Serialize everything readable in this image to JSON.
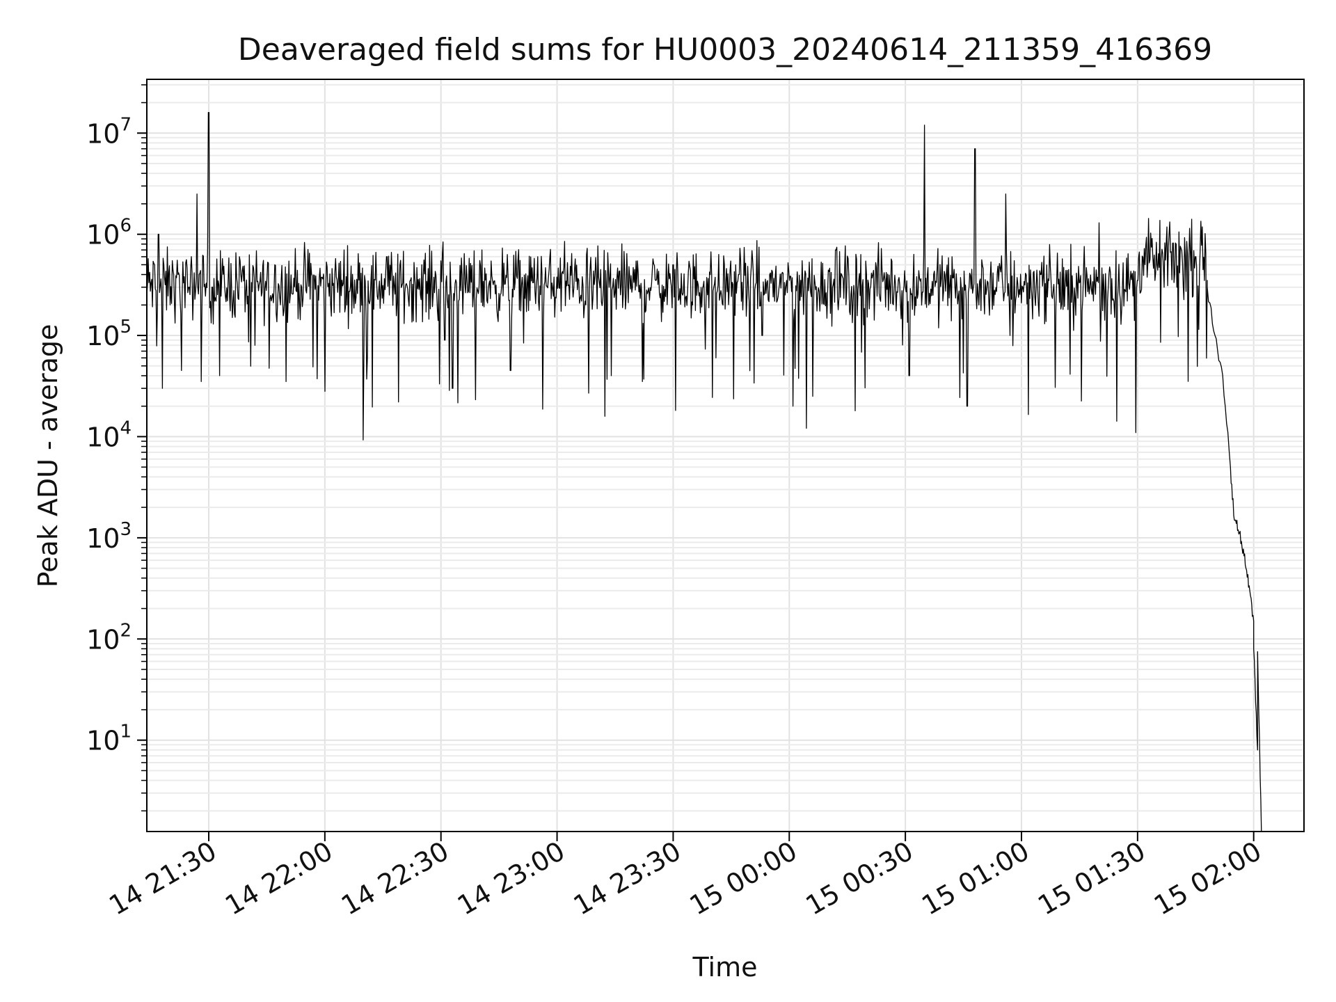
{
  "chart_data": {
    "type": "line",
    "title": "Deaveraged field sums for HU0003_20240614_211359_416369",
    "xlabel": "Time",
    "ylabel": "Peak ADU - average",
    "y_scale": "log",
    "grid": true,
    "x_ticks": [
      "14 21:30",
      "14 22:00",
      "14 22:30",
      "14 23:00",
      "14 23:30",
      "15 00:00",
      "15 00:30",
      "15 01:00",
      "15 01:30",
      "15 02:00"
    ],
    "y_ticks": [
      {
        "base": "10",
        "exp": "1"
      },
      {
        "base": "10",
        "exp": "2"
      },
      {
        "base": "10",
        "exp": "3"
      },
      {
        "base": "10",
        "exp": "4"
      },
      {
        "base": "10",
        "exp": "5"
      },
      {
        "base": "10",
        "exp": "6"
      },
      {
        "base": "10",
        "exp": "7"
      }
    ],
    "xlim": [
      "2024-06-14 21:14",
      "2024-06-15 02:13"
    ],
    "ylim": [
      1.25,
      34000000
    ],
    "series": [
      {
        "color": "#000000",
        "points": [
          [
            "2024-06-14 21:14",
            250000
          ],
          [
            "2024-06-14 21:17",
            1000000
          ],
          [
            "2024-06-14 21:18",
            30000
          ],
          [
            "2024-06-14 21:21",
            400000
          ],
          [
            "2024-06-14 21:23",
            45000
          ],
          [
            "2024-06-14 21:25",
            300000
          ],
          [
            "2024-06-14 21:27",
            2500000
          ],
          [
            "2024-06-14 21:28",
            35000
          ],
          [
            "2024-06-14 21:30",
            16000000
          ],
          [
            "2024-06-14 21:31",
            300000
          ],
          [
            "2024-06-14 21:38",
            600000
          ],
          [
            "2024-06-14 21:42",
            80000
          ],
          [
            "2024-06-14 21:47",
            500000
          ],
          [
            "2024-06-14 21:50",
            35000
          ],
          [
            "2024-06-14 21:56",
            650000
          ],
          [
            "2024-06-14 22:00",
            28000
          ],
          [
            "2024-06-14 22:05",
            700000
          ],
          [
            "2024-06-14 22:11",
            60000
          ],
          [
            "2024-06-14 22:16",
            600000
          ],
          [
            "2024-06-14 22:19",
            22000
          ],
          [
            "2024-06-14 22:25",
            500000
          ],
          [
            "2024-06-14 22:31",
            90000
          ],
          [
            "2024-06-14 22:33",
            30000
          ],
          [
            "2024-06-14 22:40",
            550000
          ],
          [
            "2024-06-14 22:48",
            45000
          ],
          [
            "2024-06-14 22:55",
            600000
          ],
          [
            "2024-06-14 23:02",
            60000
          ],
          [
            "2024-06-14 23:02",
            850000
          ],
          [
            "2024-06-14 23:08",
            200000
          ],
          [
            "2024-06-14 23:14",
            40000
          ],
          [
            "2024-06-14 23:22",
            35000
          ],
          [
            "2024-06-14 23:30",
            500000
          ],
          [
            "2024-06-14 23:35",
            200000
          ],
          [
            "2024-06-14 23:41",
            60000
          ],
          [
            "2024-06-14 23:47",
            400000
          ],
          [
            "2024-06-14 23:53",
            100000
          ],
          [
            "2024-06-15 00:01",
            20000
          ],
          [
            "2024-06-15 00:06",
            25000
          ],
          [
            "2024-06-15 00:12",
            700000
          ],
          [
            "2024-06-15 00:17",
            18000
          ],
          [
            "2024-06-15 00:24",
            450000
          ],
          [
            "2024-06-15 00:31",
            40000
          ],
          [
            "2024-06-15 00:35",
            12000000
          ],
          [
            "2024-06-15 00:36",
            200000
          ],
          [
            "2024-06-15 00:42",
            600000
          ],
          [
            "2024-06-15 00:46",
            20000
          ],
          [
            "2024-06-15 00:48",
            7000000
          ],
          [
            "2024-06-15 00:49",
            200000
          ],
          [
            "2024-06-15 00:56",
            2500000
          ],
          [
            "2024-06-15 00:57",
            100000
          ],
          [
            "2024-06-15 01:05",
            400000
          ],
          [
            "2024-06-15 01:12",
            180000
          ],
          [
            "2024-06-15 01:20",
            1300000
          ],
          [
            "2024-06-15 01:25",
            300000
          ],
          [
            "2024-06-15 01:30",
            350000
          ],
          [
            "2024-06-15 01:35",
            500000
          ],
          [
            "2024-06-15 01:40",
            800000
          ],
          [
            "2024-06-15 01:45",
            600000
          ],
          [
            "2024-06-15 01:48",
            300000
          ],
          [
            "2024-06-15 01:50",
            100000
          ],
          [
            "2024-06-15 01:52",
            40000
          ],
          [
            "2024-06-15 01:54",
            5000
          ],
          [
            "2024-06-15 01:55",
            1500
          ],
          [
            "2024-06-15 01:56",
            1200
          ],
          [
            "2024-06-15 01:57",
            800
          ],
          [
            "2024-06-15 01:58",
            500
          ],
          [
            "2024-06-15 01:59",
            300
          ],
          [
            "2024-06-15 02:00",
            150
          ],
          [
            "2024-06-15 02:00",
            80
          ],
          [
            "2024-06-15 02:01",
            8
          ],
          [
            "2024-06-15 02:01",
            75
          ],
          [
            "2024-06-15 02:02",
            1.25
          ]
        ]
      }
    ]
  }
}
